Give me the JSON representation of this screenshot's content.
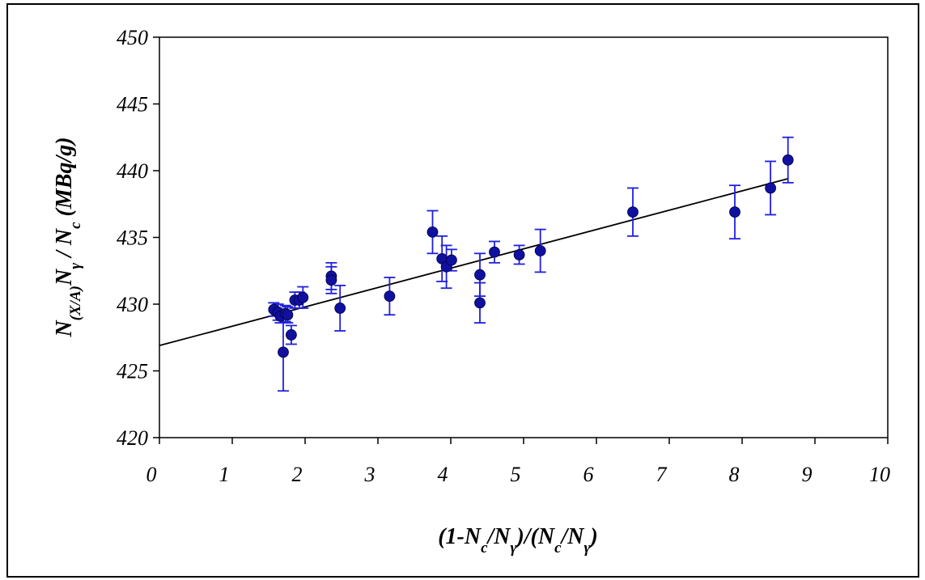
{
  "chart_data": {
    "type": "scatter",
    "title": "",
    "xlabel": {
      "parts": [
        "(1-N",
        "c",
        "/N",
        "γ",
        ")/(N",
        "c",
        "/N",
        "γ",
        ")"
      ]
    },
    "ylabel": {
      "parts": [
        "N",
        "(X/A)",
        "N",
        "γ",
        " / N",
        "c",
        " (MBq/g)"
      ]
    },
    "xlim": [
      0,
      10
    ],
    "ylim": [
      420,
      450
    ],
    "x_ticks": [
      0,
      1,
      2,
      3,
      4,
      5,
      6,
      7,
      8,
      9,
      10
    ],
    "y_ticks": [
      420,
      425,
      430,
      435,
      440,
      445,
      450
    ],
    "grid": false,
    "legend": "none",
    "colors": {
      "marker": "#1010a0",
      "error_bar": "#1f1fe0",
      "fit_line": "#000000"
    },
    "series": [
      {
        "points": [
          {
            "x": 1.57,
            "y": 429.6,
            "err": 0.5
          },
          {
            "x": 1.63,
            "y": 429.4,
            "err": 0.6
          },
          {
            "x": 1.66,
            "y": 429.1,
            "err": 0.5
          },
          {
            "x": 1.7,
            "y": 426.4,
            "err": 2.9
          },
          {
            "x": 1.73,
            "y": 429.3,
            "err": 0.6
          },
          {
            "x": 1.76,
            "y": 429.2,
            "err": 0.6
          },
          {
            "x": 1.81,
            "y": 427.7,
            "err": 0.7
          },
          {
            "x": 1.86,
            "y": 430.3,
            "err": 0.6
          },
          {
            "x": 1.92,
            "y": 430.3,
            "err": 0.6
          },
          {
            "x": 1.97,
            "y": 430.5,
            "err": 0.8
          },
          {
            "x": 2.36,
            "y": 432.1,
            "err": 1.0
          },
          {
            "x": 2.36,
            "y": 431.8,
            "err": 1.0
          },
          {
            "x": 2.48,
            "y": 429.7,
            "err": 1.7
          },
          {
            "x": 3.16,
            "y": 430.6,
            "err": 1.4
          },
          {
            "x": 3.75,
            "y": 435.4,
            "err": 1.6
          },
          {
            "x": 3.88,
            "y": 433.4,
            "err": 1.7
          },
          {
            "x": 3.94,
            "y": 432.8,
            "err": 1.6
          },
          {
            "x": 4.01,
            "y": 433.3,
            "err": 0.8
          },
          {
            "x": 4.4,
            "y": 432.2,
            "err": 1.6
          },
          {
            "x": 4.4,
            "y": 430.1,
            "err": 1.5
          },
          {
            "x": 4.6,
            "y": 433.9,
            "err": 0.8
          },
          {
            "x": 4.94,
            "y": 433.7,
            "err": 0.7
          },
          {
            "x": 5.23,
            "y": 434.0,
            "err": 1.6
          },
          {
            "x": 6.5,
            "y": 436.9,
            "err": 1.8
          },
          {
            "x": 7.9,
            "y": 436.9,
            "err": 2.0
          },
          {
            "x": 8.39,
            "y": 438.7,
            "err": 2.0
          },
          {
            "x": 8.63,
            "y": 440.8,
            "err": 1.7
          }
        ]
      }
    ],
    "fit_line": {
      "x": [
        0,
        8.63
      ],
      "y": [
        426.9,
        439.4
      ]
    }
  }
}
